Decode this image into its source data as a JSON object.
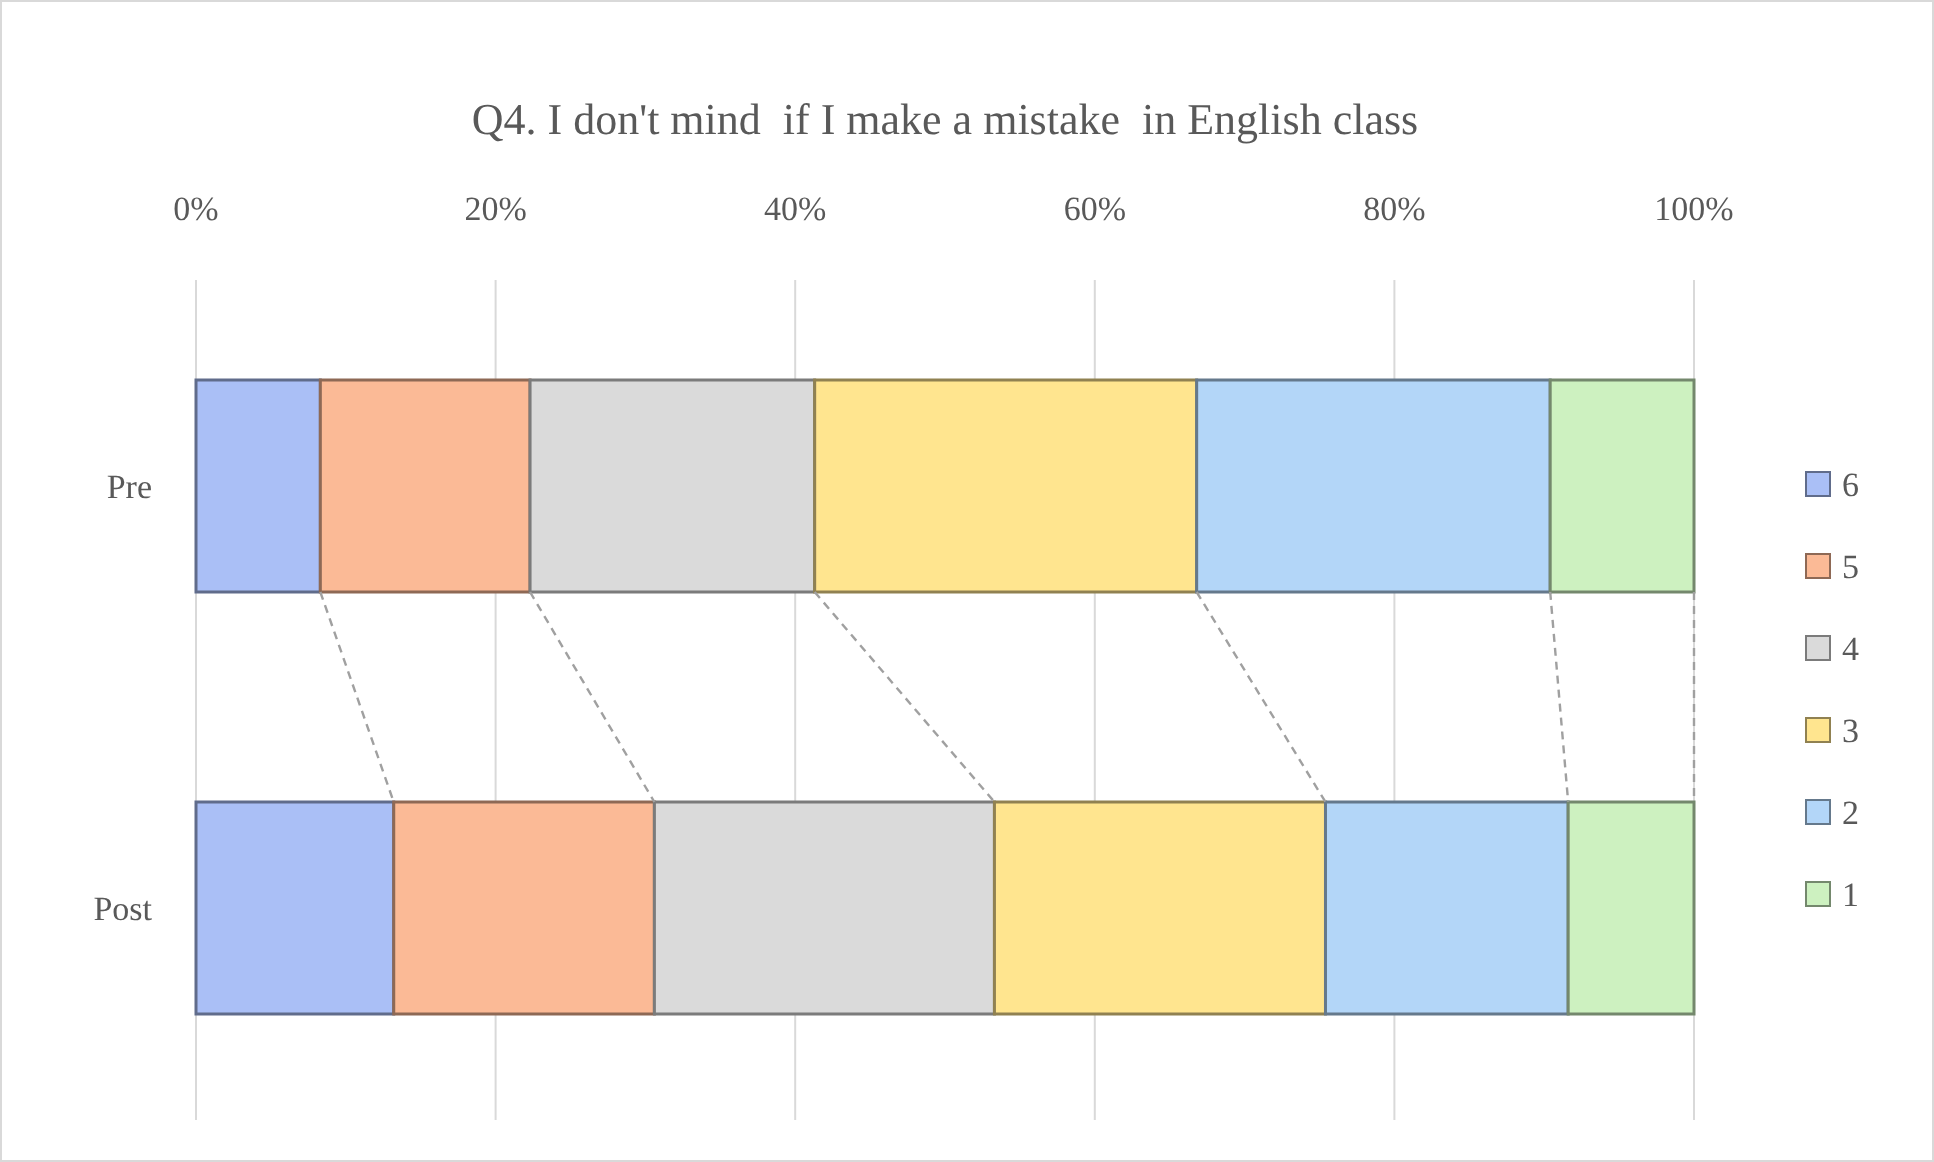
{
  "chart_data": {
    "type": "bar",
    "title": "Q4. I don't mind  if I make a mistake  in English class",
    "orientation": "horizontal",
    "stacked": true,
    "categories": [
      "Pre",
      "Post"
    ],
    "series": [
      {
        "name": "6",
        "color": "#aabff6",
        "values": [
          8.3,
          13.2
        ]
      },
      {
        "name": "5",
        "color": "#fbba96",
        "values": [
          14.0,
          17.4
        ]
      },
      {
        "name": "4",
        "color": "#dadada",
        "values": [
          19.0,
          22.7
        ]
      },
      {
        "name": "3",
        "color": "#ffe58f",
        "values": [
          25.5,
          22.1
        ]
      },
      {
        "name": "2",
        "color": "#b3d6f8",
        "values": [
          23.6,
          16.2
        ]
      },
      {
        "name": "1",
        "color": "#cdf1c0",
        "values": [
          9.6,
          8.4
        ]
      }
    ],
    "xlim": [
      0,
      100
    ],
    "xticks": [
      {
        "value": 0,
        "label": "0%"
      },
      {
        "value": 20,
        "label": "20%"
      },
      {
        "value": 40,
        "label": "40%"
      },
      {
        "value": 60,
        "label": "60%"
      },
      {
        "value": 80,
        "label": "80%"
      },
      {
        "value": 100,
        "label": "100%"
      }
    ],
    "grid": "x",
    "legend": "right"
  }
}
